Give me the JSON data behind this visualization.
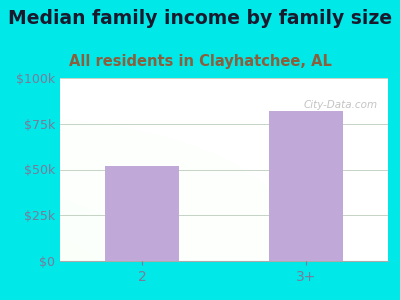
{
  "title": "Median family income by family size",
  "subtitle": "All residents in Clayhatchee, AL",
  "categories": [
    "2",
    "3+"
  ],
  "values": [
    52000,
    82000
  ],
  "bar_color": "#c0a8d8",
  "bg_color": "#00e8e8",
  "plot_bg_top_right": "#f0f8f0",
  "plot_bg_bottom_left": "#d8f0d8",
  "title_color": "#1a1a2e",
  "subtitle_color": "#8b5e3c",
  "tick_color": "#7a7a9a",
  "ylim": [
    0,
    100000
  ],
  "yticks": [
    0,
    25000,
    50000,
    75000,
    100000
  ],
  "ytick_labels": [
    "$0",
    "$25k",
    "$50k",
    "$75k",
    "$100k"
  ],
  "title_fontsize": 13.5,
  "subtitle_fontsize": 10.5,
  "watermark": "City-Data.com"
}
